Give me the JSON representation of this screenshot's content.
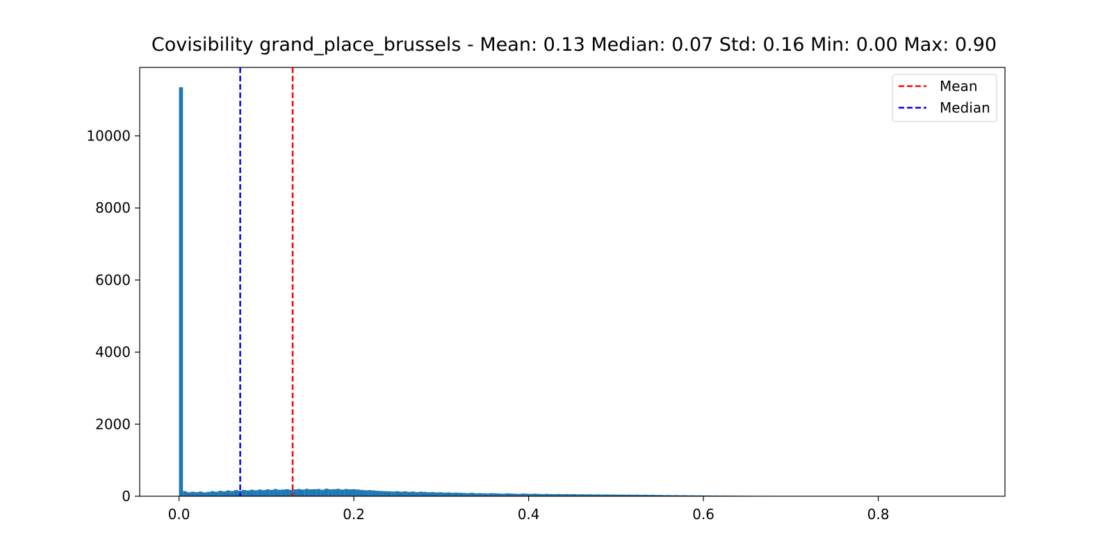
{
  "chart_data": {
    "type": "bar",
    "title": "Covisibility grand_place_brussels - Mean: 0.13 Median: 0.07 Std: 0.16 Min: 0.00 Max: 0.90",
    "xlabel": "",
    "ylabel": "",
    "xlim": [
      -0.045,
      0.945
    ],
    "ylim": [
      0,
      11900
    ],
    "x_ticks": [
      0.0,
      0.2,
      0.4,
      0.6,
      0.8
    ],
    "x_tick_labels": [
      "0.0",
      "0.2",
      "0.4",
      "0.6",
      "0.8"
    ],
    "y_ticks": [
      0,
      2000,
      4000,
      6000,
      8000,
      10000
    ],
    "y_tick_labels": [
      "0",
      "2000",
      "4000",
      "6000",
      "8000",
      "10000"
    ],
    "grid": false,
    "legend_position": "top-right",
    "bin_start": 0.0,
    "bin_width": 0.0045,
    "values": [
      11350,
      140,
      110,
      125,
      115,
      130,
      105,
      120,
      140,
      125,
      150,
      135,
      160,
      145,
      170,
      155,
      175,
      160,
      180,
      165,
      185,
      170,
      190,
      175,
      200,
      180,
      185,
      195,
      175,
      190,
      200,
      185,
      205,
      190,
      195,
      200,
      180,
      210,
      190,
      195,
      205,
      185,
      200,
      190,
      195,
      185,
      175,
      165,
      170,
      160,
      150,
      145,
      140,
      135,
      130,
      140,
      125,
      135,
      120,
      130,
      115,
      125,
      120,
      110,
      115,
      105,
      110,
      100,
      105,
      95,
      100,
      95,
      90,
      85,
      95,
      80,
      85,
      80,
      75,
      85,
      80,
      75,
      70,
      80,
      75,
      70,
      65,
      75,
      70,
      65,
      70,
      65,
      60,
      65,
      60,
      58,
      62,
      56,
      60,
      55,
      58,
      52,
      56,
      50,
      54,
      48,
      52,
      46,
      50,
      45,
      48,
      44,
      46,
      42,
      45,
      40,
      44,
      38,
      42,
      36,
      40,
      34,
      36,
      30,
      32,
      28,
      30,
      26,
      28,
      24,
      26,
      22,
      24,
      20,
      22,
      18,
      20,
      16,
      18,
      15,
      16,
      14,
      15,
      12,
      13,
      11,
      12,
      10,
      11,
      9,
      10,
      9,
      8,
      8,
      7,
      7,
      6,
      6,
      5,
      5,
      5,
      4,
      4,
      4,
      3,
      3,
      3,
      3,
      2,
      2,
      2,
      2,
      2,
      2,
      1,
      1,
      1,
      1,
      1,
      1,
      1,
      1,
      1,
      1,
      1,
      0,
      0,
      0,
      0,
      0,
      0,
      0,
      0,
      0,
      0,
      0,
      0,
      0,
      0,
      0
    ],
    "bar_color": "#1f77b4",
    "vlines": [
      {
        "name": "Mean",
        "x": 0.13,
        "color": "#ff0000"
      },
      {
        "name": "Median",
        "x": 0.07,
        "color": "#0000ff"
      }
    ],
    "legend": [
      "Mean",
      "Median"
    ]
  }
}
